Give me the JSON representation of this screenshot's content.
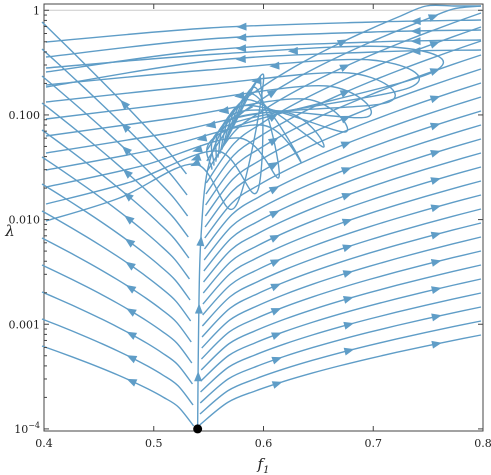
{
  "chart_data": {
    "type": "streamplot",
    "title": "",
    "xlabel": "f",
    "xlabel_subscript": "1",
    "ylabel": "λ",
    "x_range": [
      0.4,
      0.8
    ],
    "y_range": [
      0.0001,
      1
    ],
    "y_scale": "log",
    "x_ticks": [
      "0.4",
      "0.5",
      "0.6",
      "0.7",
      "0.8"
    ],
    "x_tick_values": [
      0.4,
      0.5,
      0.6,
      0.7,
      0.8
    ],
    "y_ticks": [
      "10^-4",
      "0.001",
      "0.010",
      "0.100",
      "1"
    ],
    "y_tick_values": [
      0.0001,
      0.001,
      0.01,
      0.1,
      1
    ],
    "gridline_y": 1,
    "fixed_point": {
      "x": 0.54,
      "y": 0.0001
    },
    "stream_color": "#5f9dc7",
    "point_color": "#000000",
    "grid": false
  }
}
